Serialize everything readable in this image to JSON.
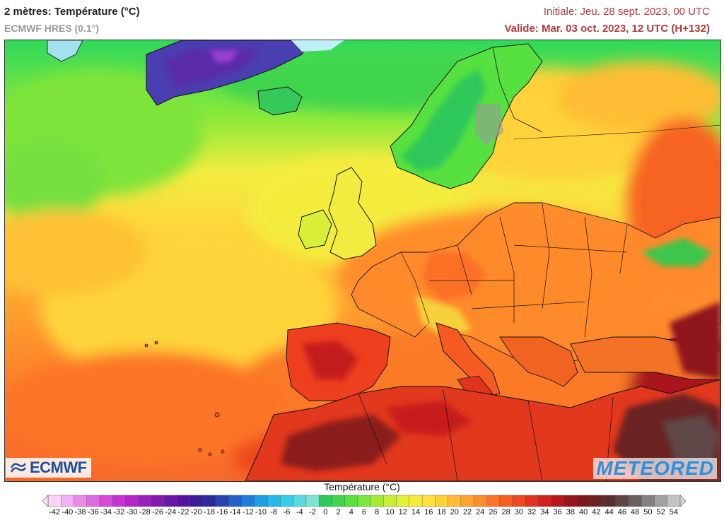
{
  "header": {
    "title": "2 mètres: Température (°C)",
    "model": "ECMWF HRES (0.1°)",
    "initial": "Initiale: Jeu. 28 sept. 2023, 00 UTC",
    "valid": "Valide: Mar. 03 oct. 2023, 12 UTC (H+132)"
  },
  "logos": {
    "left": "ECMWF",
    "right": "METEORED"
  },
  "legend": {
    "title": "Température (°C)",
    "ticks": [
      "-42",
      "-40",
      "-38",
      "-36",
      "-34",
      "-32",
      "-30",
      "-28",
      "-26",
      "-24",
      "-22",
      "-20",
      "-18",
      "-16",
      "-14",
      "-12",
      "-10",
      "-8",
      "-6",
      "-4",
      "-2",
      "0",
      "2",
      "4",
      "6",
      "8",
      "10",
      "12",
      "14",
      "16",
      "18",
      "20",
      "22",
      "24",
      "26",
      "28",
      "30",
      "32",
      "34",
      "36",
      "38",
      "40",
      "42",
      "44",
      "46",
      "48",
      "50",
      "52",
      "54"
    ],
    "colors": [
      "#f9d4f9",
      "#f3b0f3",
      "#ea8bea",
      "#e06be0",
      "#d64cd6",
      "#c833cf",
      "#b524c6",
      "#9b1fbd",
      "#8218b2",
      "#6b14a8",
      "#56119f",
      "#3a1c96",
      "#2b2b9c",
      "#2444b1",
      "#2261c6",
      "#1f7fd8",
      "#1f9de2",
      "#23b9e6",
      "#36cdea",
      "#58d9e0",
      "#7fe3d3",
      "#2fc85a",
      "#3ed64c",
      "#56e140",
      "#7ae83a",
      "#a2ec38",
      "#c6ef38",
      "#e3f03a",
      "#f4ec3e",
      "#fde23f",
      "#ffd13a",
      "#ffbd35",
      "#ffa52f",
      "#ff8d2a",
      "#fd7526",
      "#f75e22",
      "#ee491f",
      "#e2331d",
      "#d1211c",
      "#b5181c",
      "#98151c",
      "#7d1a1e",
      "#6a2222",
      "#5a2d2d",
      "#5e4646",
      "#6d5f5f",
      "#848080",
      "#a1a1a1",
      "#c3c3c3"
    ]
  }
}
